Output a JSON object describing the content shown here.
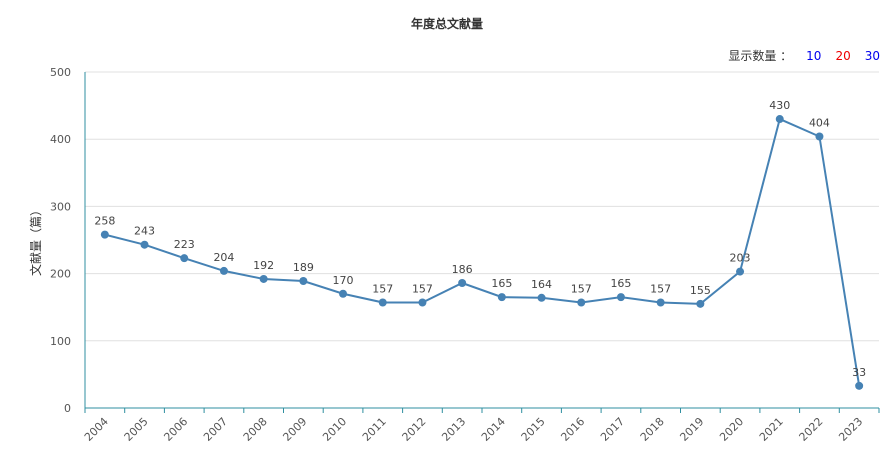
{
  "title": "年度总文献量",
  "count_selector": {
    "label": "显示数量 ：",
    "options": [
      {
        "label": "10",
        "color": "#0000ee"
      },
      {
        "label": "20",
        "color": "#ee0000"
      },
      {
        "label": "30",
        "color": "#0000ee"
      }
    ]
  },
  "chart_data": {
    "type": "line",
    "title": "年度总文献量",
    "xlabel": "",
    "ylabel": "文献量（篇）",
    "ylim": [
      0,
      500
    ],
    "yticks": [
      0,
      100,
      200,
      300,
      400,
      500
    ],
    "grid": true,
    "categories": [
      "2004",
      "2005",
      "2006",
      "2007",
      "2008",
      "2009",
      "2010",
      "2011",
      "2012",
      "2013",
      "2014",
      "2015",
      "2016",
      "2017",
      "2018",
      "2019",
      "2020",
      "2021",
      "2022",
      "2023"
    ],
    "series": [
      {
        "values": [
          258,
          243,
          223,
          204,
          192,
          189,
          170,
          157,
          157,
          186,
          165,
          164,
          157,
          165,
          157,
          155,
          203,
          430,
          404,
          33
        ],
        "color": "#4682b4"
      }
    ]
  }
}
